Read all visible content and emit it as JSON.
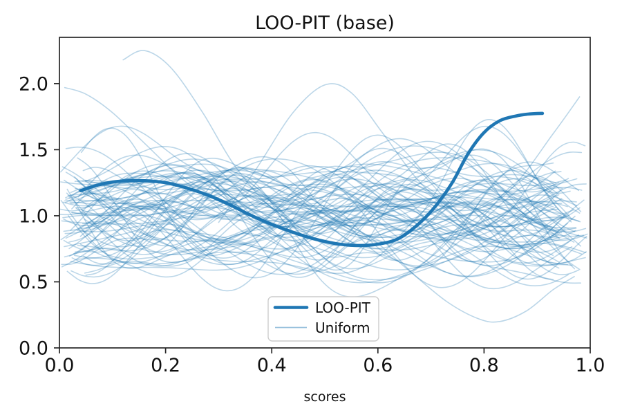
{
  "chart_data": {
    "type": "line",
    "title": "LOO-PIT (base)",
    "xlabel": "scores",
    "ylabel": "",
    "xlim": [
      0.0,
      1.0
    ],
    "ylim": [
      0.0,
      2.35
    ],
    "grid": false,
    "x_tick_values": [
      0.0,
      0.2,
      0.4,
      0.6,
      0.8,
      1.0
    ],
    "x_tick_labels": [
      "0.0",
      "0.2",
      "0.4",
      "0.6",
      "0.8",
      "1.0"
    ],
    "y_tick_values": [
      0.0,
      0.5,
      1.0,
      1.5,
      2.0
    ],
    "y_tick_labels": [
      "0.0",
      "0.5",
      "1.0",
      "1.5",
      "2.0"
    ],
    "legend": {
      "position": "lower center",
      "entries": [
        {
          "label": "LOO-PIT",
          "color": "#1f77b4",
          "linewidth": 4.6,
          "opacity": 1
        },
        {
          "label": "Uniform",
          "color": "#1f77b4",
          "linewidth": 1.8,
          "opacity": 0.45
        }
      ]
    },
    "series": [
      {
        "name": "LOO-PIT",
        "color": "#1f77b4",
        "linewidth": 4.6,
        "opacity": 1.0,
        "x": [
          0.04,
          0.07,
          0.1,
          0.13,
          0.16,
          0.2,
          0.24,
          0.28,
          0.32,
          0.36,
          0.4,
          0.44,
          0.48,
          0.52,
          0.56,
          0.6,
          0.64,
          0.68,
          0.71,
          0.74,
          0.77,
          0.8,
          0.83,
          0.86,
          0.885,
          0.91
        ],
        "y": [
          1.19,
          1.23,
          1.255,
          1.265,
          1.265,
          1.25,
          1.21,
          1.155,
          1.085,
          1.005,
          0.935,
          0.875,
          0.825,
          0.79,
          0.775,
          0.785,
          0.83,
          0.95,
          1.08,
          1.25,
          1.47,
          1.63,
          1.72,
          1.755,
          1.77,
          1.775
        ]
      },
      {
        "name": "Uniform",
        "color": "#1f77b4",
        "opacity": 0.3,
        "linewidth": 1.6,
        "generated": {
          "count": 80,
          "seed": 1357924,
          "samples_per_curve": 44,
          "x_start_max": 0.05,
          "x_end_min": 0.93,
          "x_end_max": 0.995,
          "base_range": [
            0.93,
            1.1
          ],
          "harmonics": [
            {
              "freq": [
                0.5,
                1.3
              ],
              "amp": [
                0.08,
                0.44
              ]
            },
            {
              "freq": [
                1.5,
                2.7
              ],
              "amp": [
                0.05,
                0.22
              ]
            },
            {
              "freq": [
                2.8,
                4.5
              ],
              "amp": [
                0.02,
                0.1
              ]
            }
          ],
          "y_clamp": [
            0.2,
            2.32
          ]
        },
        "extra_curves": [
          {
            "x": [
              0.12,
              0.16,
              0.21,
              0.27,
              0.33,
              0.4,
              0.48,
              0.56,
              0.64,
              0.72,
              0.8,
              0.88,
              0.94
            ],
            "y": [
              2.18,
              2.25,
              2.12,
              1.78,
              1.38,
              1.06,
              0.88,
              0.78,
              0.74,
              0.8,
              0.92,
              1.02,
              1.05
            ]
          },
          {
            "x": [
              0.5,
              0.58,
              0.66,
              0.73,
              0.79,
              0.83,
              0.88,
              0.93,
              0.97
            ],
            "y": [
              1.0,
              0.85,
              0.58,
              0.35,
              0.22,
              0.2,
              0.28,
              0.44,
              0.54
            ]
          },
          {
            "x": [
              0.3,
              0.37,
              0.44,
              0.5,
              0.55,
              0.61,
              0.68,
              0.75,
              0.82,
              0.9,
              0.96
            ],
            "y": [
              0.95,
              1.35,
              1.78,
              1.99,
              1.93,
              1.62,
              1.25,
              1.02,
              0.92,
              0.95,
              1.0
            ]
          },
          {
            "x": [
              0.01,
              0.05,
              0.1,
              0.16,
              0.24,
              0.33,
              0.42,
              0.52,
              0.62,
              0.72,
              0.82,
              0.92
            ],
            "y": [
              1.97,
              1.92,
              1.78,
              1.55,
              1.25,
              1.02,
              0.92,
              0.95,
              1.05,
              1.1,
              1.02,
              0.92
            ]
          },
          {
            "x": [
              0.05,
              0.15,
              0.25,
              0.35,
              0.45,
              0.55,
              0.65,
              0.75,
              0.85,
              0.93,
              0.98
            ],
            "y": [
              0.9,
              1.1,
              1.25,
              1.2,
              1.0,
              0.85,
              0.8,
              0.9,
              1.2,
              1.62,
              1.9
            ]
          }
        ]
      }
    ]
  }
}
